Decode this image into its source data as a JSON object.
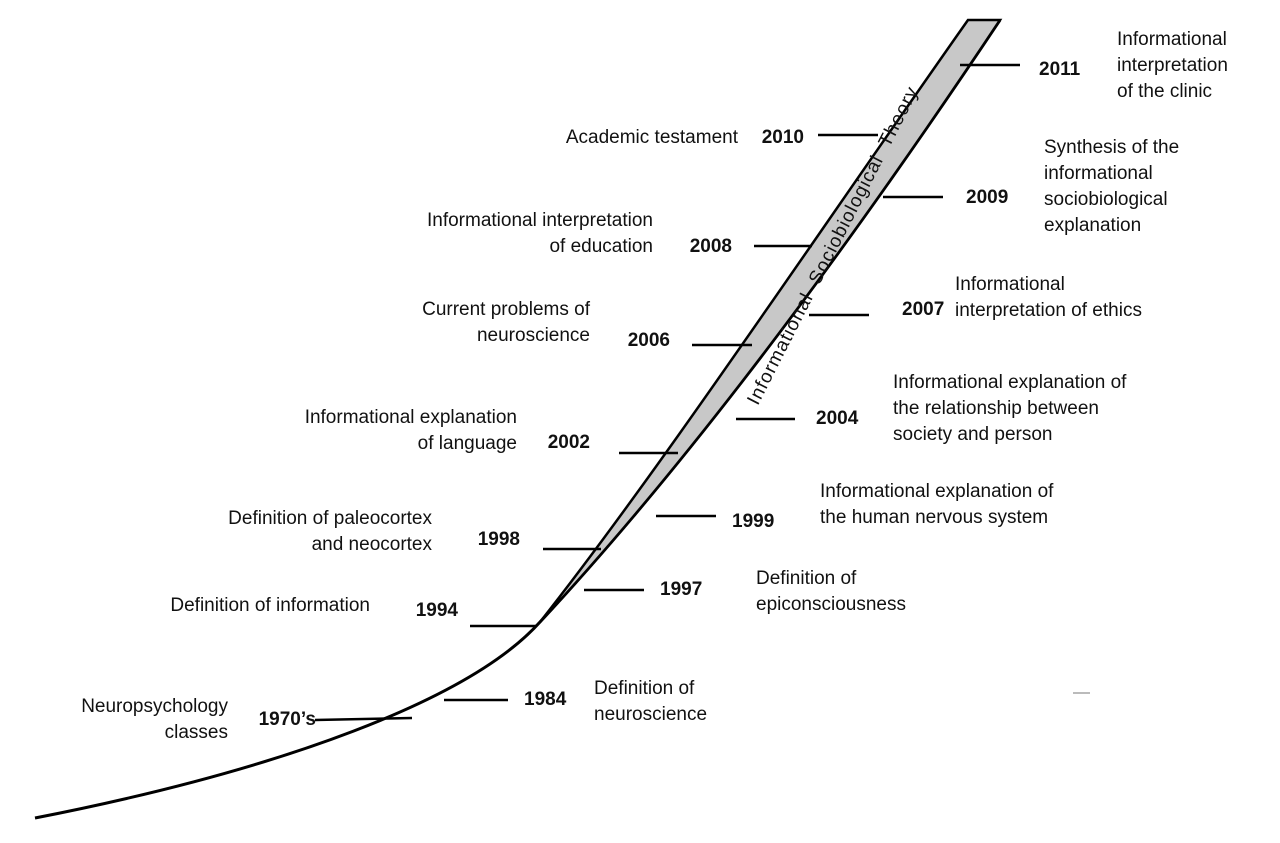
{
  "band_label": "Informational  Sociobiological  Theory",
  "colors": {
    "line": "#000000",
    "band_fill": "#c8c8c8"
  },
  "milestones": [
    {
      "id": "1970s",
      "year": "1970’s",
      "lines": [
        "Neuropsychology",
        "classes"
      ]
    },
    {
      "id": "1984",
      "year": "1984",
      "lines": [
        "Definition of",
        "neuroscience"
      ]
    },
    {
      "id": "1994",
      "year": "1994",
      "lines": [
        "Definition of information"
      ]
    },
    {
      "id": "1997",
      "year": "1997",
      "lines": [
        "Definition of",
        "epiconsciousness"
      ]
    },
    {
      "id": "1998",
      "year": "1998",
      "lines": [
        "Definition of paleocortex",
        "and neocortex"
      ]
    },
    {
      "id": "1999",
      "year": "1999",
      "lines": [
        "Informational explanation of",
        "the human nervous system"
      ]
    },
    {
      "id": "2002",
      "year": "2002",
      "lines": [
        "Informational explanation",
        "of language"
      ]
    },
    {
      "id": "2004",
      "year": "2004",
      "lines": [
        "Informational explanation of",
        "the relationship between",
        "society and person"
      ]
    },
    {
      "id": "2006",
      "year": "2006",
      "lines": [
        "Current problems of",
        "neuroscience"
      ]
    },
    {
      "id": "2007",
      "year": "2007",
      "lines": [
        "Informational",
        "interpretation of ethics"
      ]
    },
    {
      "id": "2008",
      "year": "2008",
      "lines": [
        "Informational interpretation",
        "of education"
      ]
    },
    {
      "id": "2009",
      "year": "2009",
      "lines": [
        "Synthesis of the",
        "informational",
        "sociobiological",
        "explanation"
      ]
    },
    {
      "id": "2010",
      "year": "2010",
      "lines": [
        "Academic testament"
      ]
    },
    {
      "id": "2011",
      "year": "2011",
      "lines": [
        "Informational",
        "interpretation",
        "of the clinic"
      ]
    }
  ]
}
